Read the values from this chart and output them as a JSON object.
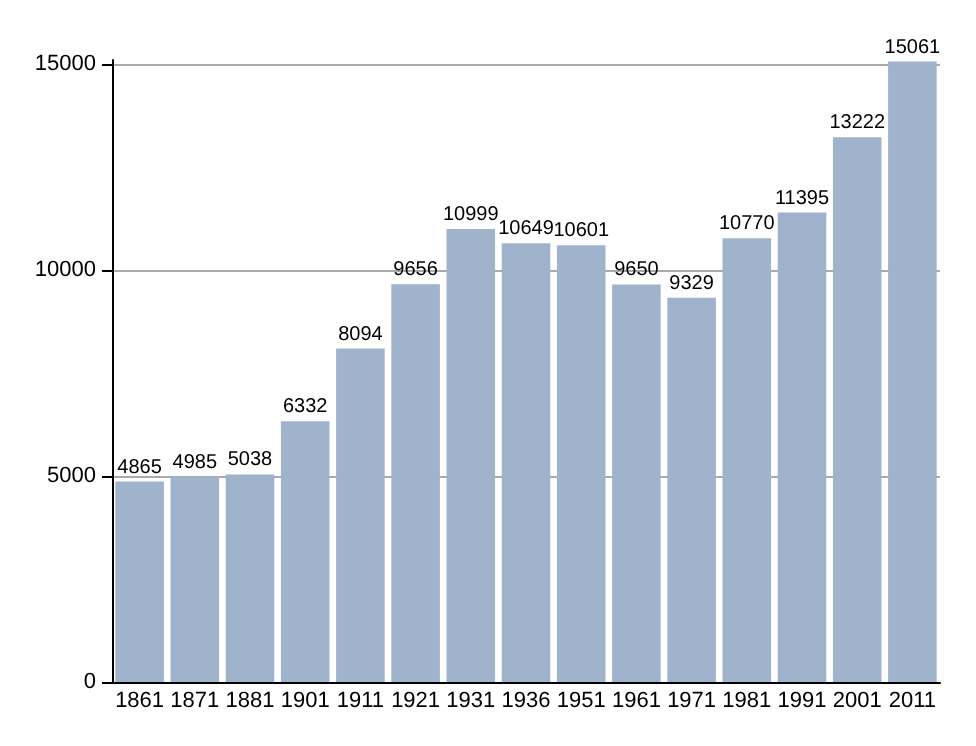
{
  "chart_data": {
    "type": "bar",
    "categories": [
      "1861",
      "1871",
      "1881",
      "1901",
      "1911",
      "1921",
      "1931",
      "1936",
      "1951",
      "1961",
      "1971",
      "1981",
      "1991",
      "2001",
      "2011"
    ],
    "values": [
      4865,
      4985,
      5038,
      6332,
      8094,
      9656,
      10999,
      10649,
      10601,
      9650,
      9329,
      10770,
      11395,
      13222,
      15061
    ],
    "color": "#9fb3cc",
    "ylim": [
      0,
      15100
    ],
    "yticks": [
      0,
      5000,
      10000,
      15000
    ],
    "grid": "y",
    "data_labels": true
  }
}
